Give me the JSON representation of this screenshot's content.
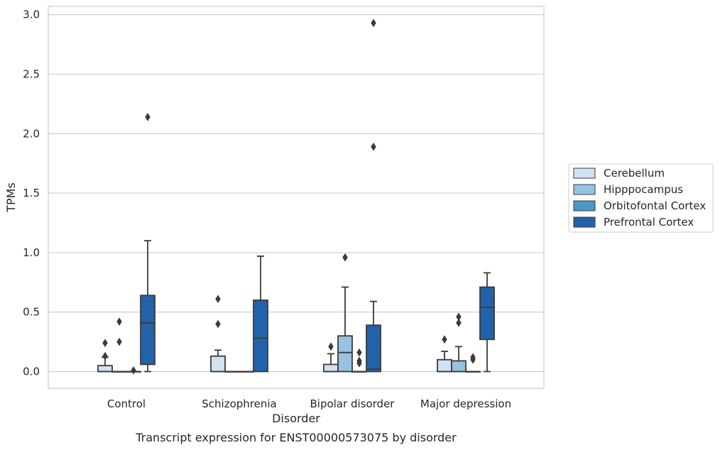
{
  "chart_data": {
    "type": "box",
    "title": "",
    "caption": "Transcript expression for ENST00000573075 by disorder",
    "xlabel": "Disorder",
    "ylabel": "TPMs",
    "ylim": [
      -0.14,
      3.07
    ],
    "yticks": [
      "0.0",
      "0.5",
      "1.0",
      "1.5",
      "2.0",
      "2.5",
      "3.0"
    ],
    "grid": "horizontal",
    "legend_placement": "right",
    "categories": [
      "Control",
      "Schizophrenia",
      "Bipolar disorder",
      "Major depression"
    ],
    "series": [
      {
        "name": "Cerebellum",
        "color": "#d0e1f2",
        "boxes": [
          {
            "q1": 0,
            "median": 0,
            "q3": 0.05,
            "whisker_low": 0,
            "whisker_high": 0.12,
            "outliers": [
              0.24,
              0.13
            ]
          },
          {
            "q1": 0,
            "median": 0,
            "q3": 0.13,
            "whisker_low": 0,
            "whisker_high": 0.18,
            "outliers": [
              0.61,
              0.4
            ]
          },
          {
            "q1": 0,
            "median": 0,
            "q3": 0.06,
            "whisker_low": 0,
            "whisker_high": 0.15,
            "outliers": [
              0.21
            ]
          },
          {
            "q1": 0,
            "median": 0,
            "q3": 0.1,
            "whisker_low": 0,
            "whisker_high": 0.17,
            "outliers": [
              0.27
            ]
          }
        ]
      },
      {
        "name": "Hipppocampus",
        "color": "#94c4df",
        "boxes": [
          {
            "q1": 0,
            "median": 0,
            "q3": 0,
            "whisker_low": 0,
            "whisker_high": 0,
            "outliers": [
              0.42,
              0.25
            ]
          },
          {
            "q1": 0,
            "median": 0,
            "q3": 0,
            "whisker_low": 0,
            "whisker_high": 0,
            "outliers": []
          },
          {
            "q1": 0,
            "median": 0.16,
            "q3": 0.3,
            "whisker_low": 0,
            "whisker_high": 0.71,
            "outliers": [
              0.96
            ]
          },
          {
            "q1": 0,
            "median": 0,
            "q3": 0.09,
            "whisker_low": 0,
            "whisker_high": 0.21,
            "outliers": [
              0.46,
              0.41
            ]
          }
        ]
      },
      {
        "name": "Orbitofontal Cortex",
        "color": "#4a98c9",
        "boxes": [
          {
            "q1": 0,
            "median": 0,
            "q3": 0,
            "whisker_low": 0,
            "whisker_high": 0,
            "outliers": [
              0.01
            ]
          },
          {
            "q1": 0,
            "median": 0,
            "q3": 0,
            "whisker_low": 0,
            "whisker_high": 0,
            "outliers": []
          },
          {
            "q1": 0,
            "median": 0,
            "q3": 0,
            "whisker_low": 0,
            "whisker_high": 0,
            "outliers": [
              0.16,
              0.09,
              0.07
            ]
          },
          {
            "q1": 0,
            "median": 0,
            "q3": 0,
            "whisker_low": 0,
            "whisker_high": 0,
            "outliers": [
              0.12,
              0.1
            ]
          }
        ]
      },
      {
        "name": "Prefrontal Cortex",
        "color": "#2163aa",
        "boxes": [
          {
            "q1": 0.06,
            "median": 0.41,
            "q3": 0.64,
            "whisker_low": 0,
            "whisker_high": 1.1,
            "outliers": [
              2.14
            ]
          },
          {
            "q1": 0,
            "median": 0.28,
            "q3": 0.6,
            "whisker_low": 0,
            "whisker_high": 0.97,
            "outliers": []
          },
          {
            "q1": 0,
            "median": 0.02,
            "q3": 0.39,
            "whisker_low": 0,
            "whisker_high": 0.59,
            "outliers": [
              2.93,
              1.89
            ]
          },
          {
            "q1": 0.27,
            "median": 0.54,
            "q3": 0.71,
            "whisker_low": 0,
            "whisker_high": 0.83,
            "outliers": []
          }
        ]
      }
    ]
  }
}
